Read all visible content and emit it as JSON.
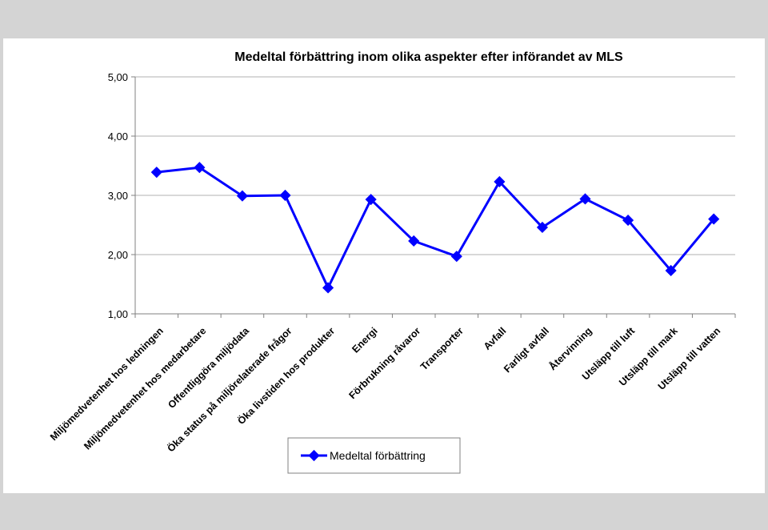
{
  "chart_data": {
    "type": "line",
    "title": "Medeltal förbättring inom olika aspekter efter införandet av MLS",
    "xlabel": "",
    "ylabel": "",
    "ylim": [
      1,
      5
    ],
    "yticks": [
      "1,00",
      "2,00",
      "3,00",
      "4,00",
      "5,00"
    ],
    "grid": true,
    "legend_position": "bottom",
    "categories": [
      "Miljömedvetenhet hos ledningen",
      "Miljömedvetenhet hos medarbetare",
      "Offentliggöra miljödata",
      "Öka status på miljörelaterade frågor",
      "Öka livstiden hos produkter",
      "Energi",
      "Förbrukning råvaror",
      "Transporter",
      "Avfall",
      "Farligt avfall",
      "Återvinning",
      "Utsläpp till luft",
      "Utsläpp till mark",
      "Utsläpp till vatten"
    ],
    "series": [
      {
        "name": "Medeltal förbättring",
        "color": "#0000ff",
        "values": [
          3.39,
          3.47,
          2.99,
          3.0,
          1.44,
          2.93,
          2.23,
          1.97,
          3.23,
          2.46,
          2.94,
          2.58,
          1.73,
          2.6
        ]
      }
    ]
  }
}
